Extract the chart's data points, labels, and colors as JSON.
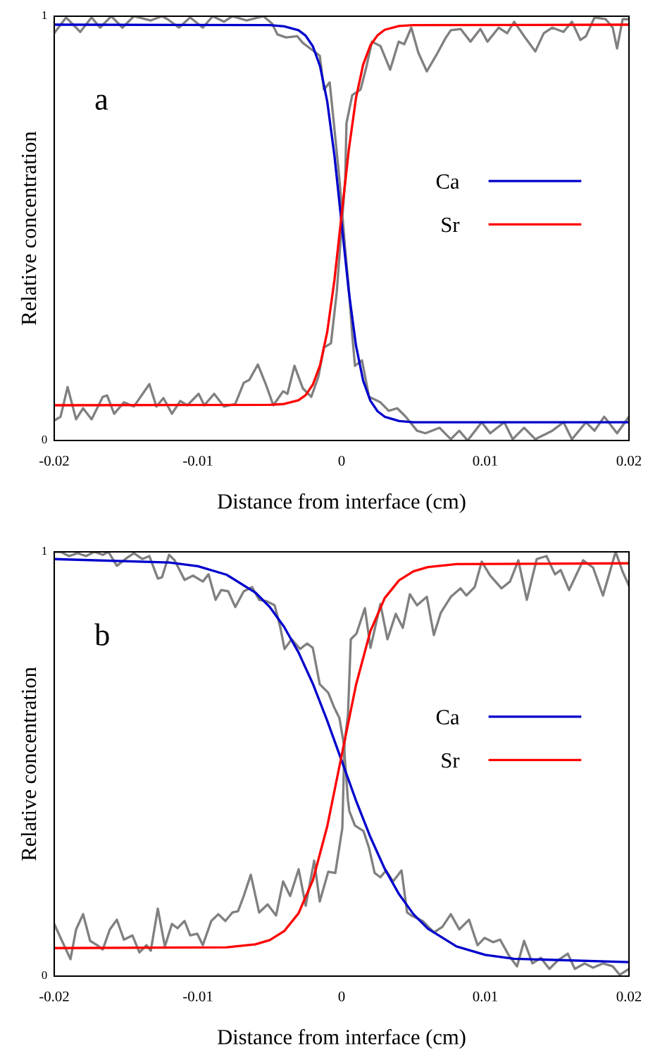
{
  "chart_data": [
    {
      "type": "line",
      "xlabel": "Distance from interface (cm)",
      "ylabel": "Relative concentration",
      "annotations": [
        "a"
      ],
      "xlim": [
        -0.02,
        0.02
      ],
      "xticks": [
        -0.02,
        -0.01,
        0,
        0.01,
        0.02
      ],
      "ylim": [
        0,
        1
      ],
      "yticks": [
        0,
        1
      ],
      "grid": false,
      "legend": "right",
      "marker": "none",
      "line_style": "solid",
      "series": [
        {
          "color": "#808080",
          "x": [
            -0.02,
            -0.01917,
            -0.01819,
            -0.0174,
            -0.01681,
            -0.01603,
            -0.01525,
            -0.01446,
            -0.01328,
            -0.0125,
            -0.01211,
            -0.01132,
            -0.01054,
            -0.00966,
            -0.00897,
            -0.00819,
            -0.0076,
            -0.00662,
            -0.00544,
            -0.00485,
            -0.00446,
            -0.00387,
            -0.00309,
            -0.0027,
            -0.00191,
            -0.00152,
            -0.00123,
            -0.00083,
            -0.00054,
            -0.00015,
            0.00025,
            0.0005,
            0.00074,
            0.00093,
            0.00142,
            0.00191,
            0.0027,
            0.00328,
            0.00387,
            0.00446,
            0.00525,
            0.00583,
            0.00681,
            0.0076,
            0.00819,
            0.00877,
            0.00975,
            0.01034,
            0.01132,
            0.01191,
            0.0127,
            0.01348,
            0.01466,
            0.01544,
            0.01603,
            0.01701,
            0.0176,
            0.01828,
            0.01917,
            0.02
          ],
          "values": [
            0.96,
            0.997,
            0.963,
            0.997,
            0.973,
            1.0,
            0.973,
            1.0,
            0.99,
            1.0,
            0.993,
            0.973,
            0.997,
            0.973,
            1.0,
            0.987,
            1.0,
            0.99,
            1.0,
            0.983,
            0.957,
            0.95,
            0.953,
            0.937,
            0.917,
            0.907,
            0.827,
            0.844,
            0.748,
            0.615,
            0.45,
            0.36,
            0.249,
            0.176,
            0.189,
            0.103,
            0.09,
            0.07,
            0.076,
            0.056,
            0.023,
            0.017,
            0.03,
            0.003,
            0.023,
            0.0,
            0.043,
            0.017,
            0.043,
            0.003,
            0.03,
            0.003,
            0.023,
            0.043,
            0.003,
            0.043,
            0.023,
            0.056,
            0.017,
            0.056
          ]
        },
        {
          "color": "#808080",
          "x": [
            -0.02,
            -0.01956,
            -0.01907,
            -0.01848,
            -0.01799,
            -0.0174,
            -0.01662,
            -0.01632,
            -0.01583,
            -0.01515,
            -0.01446,
            -0.01338,
            -0.01289,
            -0.0124,
            -0.01181,
            -0.01123,
            -0.01074,
            -0.00995,
            -0.00956,
            -0.00887,
            -0.00819,
            -0.0074,
            -0.00681,
            -0.00642,
            -0.00583,
            -0.00525,
            -0.00475,
            -0.00407,
            -0.00377,
            -0.00328,
            -0.0027,
            -0.00211,
            -0.00162,
            -0.00123,
            -0.00074,
            -0.00034,
            -5e-05,
            0.00025,
            0.00034,
            0.00074,
            0.00132,
            0.00172,
            0.00211,
            0.0027,
            0.00338,
            0.00397,
            0.00436,
            0.00485,
            0.00534,
            0.00593,
            0.00662,
            0.00721,
            0.0076,
            0.00828,
            0.00897,
            0.00966,
            0.01015,
            0.01093,
            0.01152,
            0.01201,
            0.0127,
            0.01348,
            0.01407,
            0.01466,
            0.01544,
            0.01603,
            0.01662,
            0.01701,
            0.0176,
            0.01838,
            0.01887,
            0.01917,
            0.01956,
            0.02
          ],
          "values": [
            0.047,
            0.056,
            0.126,
            0.05,
            0.076,
            0.05,
            0.103,
            0.106,
            0.063,
            0.09,
            0.08,
            0.133,
            0.08,
            0.1,
            0.063,
            0.093,
            0.083,
            0.11,
            0.083,
            0.11,
            0.08,
            0.086,
            0.136,
            0.143,
            0.179,
            0.13,
            0.083,
            0.116,
            0.11,
            0.176,
            0.123,
            0.103,
            0.15,
            0.219,
            0.229,
            0.349,
            0.482,
            0.615,
            0.748,
            0.814,
            0.827,
            0.88,
            0.94,
            0.93,
            0.874,
            0.94,
            0.934,
            0.973,
            0.914,
            0.87,
            0.91,
            0.947,
            0.967,
            0.97,
            0.94,
            0.97,
            0.94,
            0.973,
            0.96,
            0.987,
            0.953,
            0.917,
            0.96,
            0.973,
            0.963,
            0.987,
            0.944,
            0.953,
            0.997,
            0.993,
            0.973,
            0.924,
            0.993,
            0.993
          ]
        },
        {
          "name": "Ca",
          "color": "#0000cc",
          "x": [
            -0.02,
            -0.005,
            -0.004,
            -0.003,
            -0.0025,
            -0.002,
            -0.0015,
            -0.001,
            -0.0005,
            0,
            0.0005,
            0.001,
            0.0015,
            0.002,
            0.0025,
            0.003,
            0.004,
            0.005,
            0.02
          ],
          "values": [
            0.98,
            0.979,
            0.976,
            0.967,
            0.954,
            0.929,
            0.882,
            0.799,
            0.672,
            0.512,
            0.351,
            0.224,
            0.141,
            0.094,
            0.069,
            0.056,
            0.046,
            0.043,
            0.043
          ]
        },
        {
          "name": "Sr",
          "color": "#ff0000",
          "x": [
            -0.02,
            -0.005,
            -0.004,
            -0.003,
            -0.0025,
            -0.002,
            -0.0015,
            -0.001,
            -0.0005,
            0,
            0.0005,
            0.001,
            0.0015,
            0.002,
            0.0025,
            0.003,
            0.004,
            0.005,
            0.02
          ],
          "values": [
            0.083,
            0.084,
            0.086,
            0.095,
            0.107,
            0.132,
            0.177,
            0.256,
            0.378,
            0.532,
            0.685,
            0.807,
            0.886,
            0.931,
            0.955,
            0.968,
            0.977,
            0.979,
            0.98
          ]
        }
      ]
    },
    {
      "type": "line",
      "xlabel": "Distance from interface (cm)",
      "ylabel": "Relative concentration",
      "annotations": [
        "b"
      ],
      "xlim": [
        -0.02,
        0.02
      ],
      "xticks": [
        -0.02,
        -0.01,
        0,
        0.01,
        0.02
      ],
      "ylim": [
        0,
        1
      ],
      "yticks": [
        0,
        1
      ],
      "grid": false,
      "legend": "right",
      "marker": "none",
      "line_style": "solid",
      "series": [
        {
          "color": "#808080",
          "x": [
            -0.02,
            -0.01956,
            -0.01897,
            -0.01838,
            -0.01779,
            -0.01721,
            -0.01662,
            -0.01623,
            -0.01564,
            -0.01505,
            -0.01446,
            -0.01387,
            -0.01338,
            -0.01279,
            -0.0125,
            -0.01201,
            -0.01162,
            -0.01093,
            -0.01034,
            -0.00966,
            -0.00926,
            -0.00877,
            -0.00838,
            -0.00789,
            -0.0074,
            -0.00681,
            -0.00623,
            -0.00574,
            -0.00525,
            -0.00466,
            -0.00426,
            -0.00397,
            -0.00348,
            -0.00289,
            -0.0024,
            -0.00201,
            -0.00152,
            -0.00093,
            -0.00054,
            -0.00015,
            0.00015,
            0.00044,
            0.00054,
            0.00093,
            0.00152,
            0.00191,
            0.0023,
            0.0027,
            0.00309,
            0.00358,
            0.00417,
            0.00456,
            0.00485,
            0.00564,
            0.00642,
            0.00701,
            0.0076,
            0.00819,
            0.00887,
            0.00946,
            0.00995,
            0.01054,
            0.01103,
            0.01162,
            0.01221,
            0.0127,
            0.01328,
            0.01387,
            0.01446,
            0.01505,
            0.01574,
            0.01623,
            0.01691,
            0.0175,
            0.01819,
            0.01887,
            0.01936,
            0.02
          ],
          "values": [
            1.0,
            1.0,
            0.99,
            0.997,
            0.99,
            1.0,
            0.993,
            1.0,
            0.967,
            0.983,
            0.997,
            0.983,
            0.99,
            0.937,
            0.94,
            0.993,
            0.98,
            0.934,
            0.944,
            0.93,
            0.947,
            0.887,
            0.91,
            0.907,
            0.87,
            0.907,
            0.917,
            0.887,
            0.884,
            0.874,
            0.821,
            0.771,
            0.794,
            0.771,
            0.784,
            0.774,
            0.688,
            0.668,
            0.635,
            0.608,
            0.548,
            0.415,
            0.389,
            0.355,
            0.342,
            0.302,
            0.243,
            0.233,
            0.249,
            0.223,
            0.249,
            0.15,
            0.143,
            0.13,
            0.103,
            0.116,
            0.146,
            0.11,
            0.133,
            0.073,
            0.09,
            0.08,
            0.086,
            0.05,
            0.023,
            0.083,
            0.03,
            0.043,
            0.017,
            0.037,
            0.053,
            0.017,
            0.03,
            0.02,
            0.03,
            0.023,
            0.003,
            0.017
          ]
        },
        {
          "color": "#808080",
          "x": [
            -0.02,
            -0.01946,
            -0.01887,
            -0.01848,
            -0.01799,
            -0.0175,
            -0.01701,
            -0.01662,
            -0.01613,
            -0.01564,
            -0.01515,
            -0.01456,
            -0.01407,
            -0.01358,
            -0.01328,
            -0.01279,
            -0.0123,
            -0.01181,
            -0.01142,
            -0.01093,
            -0.01054,
            -0.01005,
            -0.00966,
            -0.00907,
            -0.00858,
            -0.00809,
            -0.0076,
            -0.00721,
            -0.00681,
            -0.00632,
            -0.00574,
            -0.00515,
            -0.00456,
            -0.00407,
            -0.00358,
            -0.00299,
            -0.0025,
            -0.00191,
            -0.00152,
            -0.00093,
            -0.00044,
            5e-05,
            0.0002,
            0.00044,
            0.00064,
            0.00103,
            0.00162,
            0.00201,
            0.0027,
            0.00319,
            0.00377,
            0.00426,
            0.00475,
            0.00525,
            0.00593,
            0.00642,
            0.00691,
            0.0076,
            0.00828,
            0.00868,
            0.00926,
            0.00975,
            0.01034,
            0.01113,
            0.01172,
            0.0123,
            0.01289,
            0.01358,
            0.01426,
            0.01485,
            0.01525,
            0.01583,
            0.01681,
            0.0175,
            0.01819,
            0.01907,
            0.01956,
            0.02
          ],
          "values": [
            0.123,
            0.083,
            0.04,
            0.11,
            0.146,
            0.083,
            0.073,
            0.063,
            0.11,
            0.133,
            0.086,
            0.096,
            0.056,
            0.073,
            0.06,
            0.159,
            0.07,
            0.123,
            0.113,
            0.13,
            0.096,
            0.1,
            0.073,
            0.13,
            0.146,
            0.13,
            0.15,
            0.153,
            0.189,
            0.239,
            0.15,
            0.169,
            0.143,
            0.223,
            0.189,
            0.252,
            0.166,
            0.272,
            0.176,
            0.246,
            0.243,
            0.349,
            0.548,
            0.615,
            0.794,
            0.807,
            0.867,
            0.774,
            0.877,
            0.794,
            0.854,
            0.821,
            0.9,
            0.874,
            0.894,
            0.804,
            0.857,
            0.894,
            0.914,
            0.897,
            0.917,
            0.977,
            0.944,
            0.914,
            0.93,
            0.98,
            0.887,
            0.983,
            0.99,
            0.947,
            0.957,
            0.91,
            0.98,
            0.963,
            0.897,
            1.0,
            0.953,
            0.92
          ]
        },
        {
          "name": "Ca",
          "color": "#0000cc",
          "x": [
            -0.02,
            -0.012,
            -0.01,
            -0.008,
            -0.006,
            -0.005,
            -0.004,
            -0.003,
            -0.002,
            -0.001,
            0,
            0.001,
            0.002,
            0.003,
            0.004,
            0.005,
            0.006,
            0.008,
            0.01,
            0.012,
            0.02
          ],
          "values": [
            0.983,
            0.975,
            0.966,
            0.946,
            0.904,
            0.87,
            0.823,
            0.763,
            0.689,
            0.602,
            0.508,
            0.414,
            0.328,
            0.253,
            0.193,
            0.146,
            0.112,
            0.07,
            0.05,
            0.041,
            0.033
          ]
        },
        {
          "name": "Sr",
          "color": "#ff0000",
          "x": [
            -0.02,
            -0.008,
            -0.006,
            -0.005,
            -0.004,
            -0.003,
            -0.002,
            -0.001,
            0,
            0.001,
            0.002,
            0.003,
            0.004,
            0.005,
            0.006,
            0.008,
            0.02
          ],
          "values": [
            0.066,
            0.068,
            0.075,
            0.085,
            0.106,
            0.148,
            0.226,
            0.353,
            0.52,
            0.686,
            0.813,
            0.891,
            0.933,
            0.954,
            0.964,
            0.971,
            0.973
          ]
        }
      ]
    }
  ]
}
